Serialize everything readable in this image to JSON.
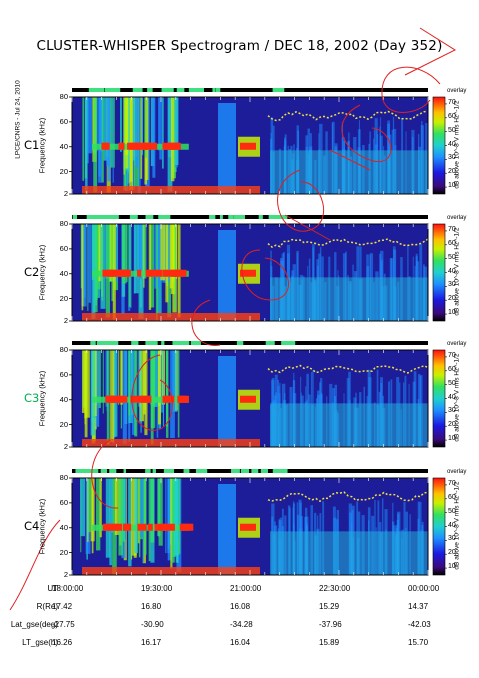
{
  "title": "CLUSTER-WHISPER Spectrogram / DEC 18, 2002 (Day 352)",
  "credit": "LPCE/CNRS - Jul 24, 2010",
  "panels": [
    {
      "label": "C1",
      "label_color": "#000000"
    },
    {
      "label": "C2",
      "label_color": "#000000"
    },
    {
      "label": "C3",
      "label_color": "#00b050"
    },
    {
      "label": "C4",
      "label_color": "#000000"
    }
  ],
  "y_axis": {
    "label": "Frequency (kHz)",
    "ticks": [
      "80",
      "60",
      "40",
      "20",
      "2"
    ]
  },
  "colorbar": {
    "title": "overlay",
    "label": "dB above 10^-8 V rms Hz^-1/2",
    "ticks": [
      "70",
      "60",
      "50",
      "40",
      "30",
      "20",
      "10"
    ]
  },
  "bottom_axis": {
    "rows": [
      {
        "label": "UT",
        "values": [
          "18:00:00",
          "19:30:00",
          "21:00:00",
          "22:30:00",
          "00:00:00"
        ]
      },
      {
        "label": "R(Re)",
        "values": [
          "17.42",
          "16.80",
          "16.08",
          "15.29",
          "14.37"
        ]
      },
      {
        "label": "Lat_gse(deg)",
        "values": [
          "-27.75",
          "-30.90",
          "-34.28",
          "-37.96",
          "-42.03"
        ]
      },
      {
        "label": "LT_gse(h)",
        "values": [
          "16.26",
          "16.17",
          "16.04",
          "15.89",
          "15.70"
        ]
      }
    ]
  },
  "chart_data": [
    {
      "type": "heatmap",
      "panel": "C1",
      "title": "C1",
      "ylabel": "Frequency (kHz)",
      "ylim": [
        2,
        80
      ],
      "xlim": [
        "18:00:00",
        "00:00:00"
      ],
      "zlim": [
        10,
        70
      ],
      "x_ticks": [
        "18:00:00",
        "19:30:00",
        "21:00:00",
        "22:30:00",
        "00:00:00"
      ],
      "features": {
        "plasma_line_khz": 40,
        "upper_cutoff_khz_after_2130": 65
      }
    },
    {
      "type": "heatmap",
      "panel": "C2",
      "title": "C2",
      "ylabel": "Frequency (kHz)",
      "ylim": [
        2,
        80
      ],
      "xlim": [
        "18:00:00",
        "00:00:00"
      ],
      "zlim": [
        10,
        70
      ],
      "features": {
        "plasma_line_khz": 40,
        "upper_cutoff_khz_after_2130": 65
      }
    },
    {
      "type": "heatmap",
      "panel": "C3",
      "title": "C3",
      "ylabel": "Frequency (kHz)",
      "ylim": [
        2,
        80
      ],
      "xlim": [
        "18:00:00",
        "00:00:00"
      ],
      "zlim": [
        10,
        70
      ],
      "features": {
        "plasma_line_khz": 40,
        "upper_cutoff_khz_after_2130": 65
      }
    },
    {
      "type": "heatmap",
      "panel": "C4",
      "title": "C4",
      "ylabel": "Frequency (kHz)",
      "ylim": [
        2,
        80
      ],
      "xlim": [
        "18:00:00",
        "00:00:00"
      ],
      "zlim": [
        10,
        70
      ],
      "features": {
        "plasma_line_khz": 40,
        "upper_cutoff_khz_after_2130": 65
      }
    }
  ],
  "colors": {
    "low": "#1a1a8c",
    "mid_low": "#1e5cff",
    "mid": "#20d0d0",
    "mid_high": "#30e060",
    "high": "#f0f000",
    "top": "#ff2020",
    "annotation": "#e02020",
    "status_bar_on": "#40e080"
  }
}
